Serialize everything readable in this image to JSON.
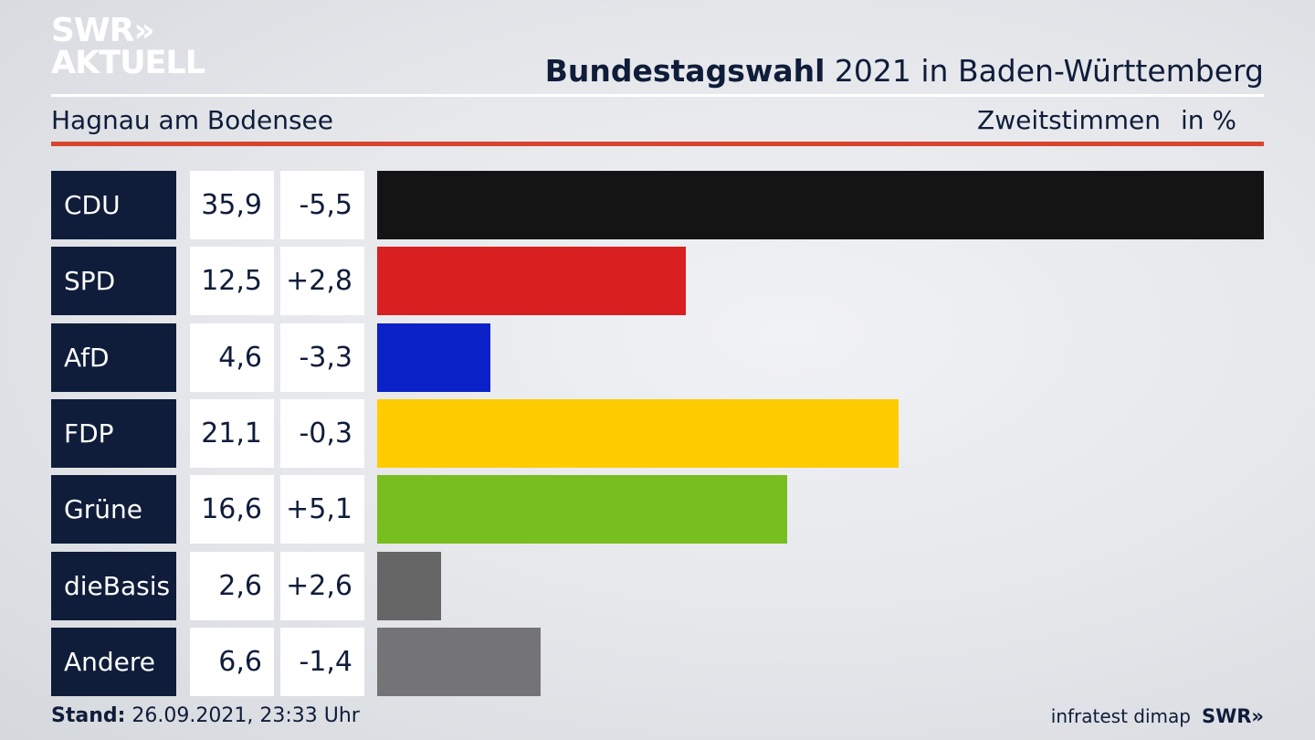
{
  "logo": {
    "line1": "SWR»",
    "line2": "AKTUELL"
  },
  "header": {
    "title_bold": "Bundestagswahl",
    "title_rest": " 2021 in Baden-Württemberg",
    "region": "Hagnau am Bodensee",
    "measure": "Zweitstimmen",
    "unit": "in %"
  },
  "colors": {
    "navy": "#0f1d3a",
    "accent_red": "#d8452f"
  },
  "chart_data": {
    "type": "bar",
    "categories": [
      "CDU",
      "SPD",
      "AfD",
      "FDP",
      "Grüne",
      "dieBasis",
      "Andere"
    ],
    "values": [
      35.9,
      12.5,
      4.6,
      21.1,
      16.6,
      2.6,
      6.6
    ],
    "value_labels": [
      "35,9",
      "12,5",
      "4,6",
      "21,1",
      "16,6",
      "2,6",
      "6,6"
    ],
    "diff_labels": [
      "-5,5",
      "+2,8",
      "-3,3",
      "-0,3",
      "+5,1",
      "+2,6",
      "-1,4"
    ],
    "colors": [
      "#141414",
      "#d91f1f",
      "#0a22c8",
      "#ffcc00",
      "#78be1e",
      "#666666",
      "#747476"
    ],
    "orientation": "horizontal",
    "xlim": [
      0,
      35.9
    ]
  },
  "footer": {
    "stand_label": "Stand:",
    "stand_value": " 26.09.2021, 23:33 Uhr",
    "source": "infratest dimap",
    "brand": "SWR»"
  }
}
